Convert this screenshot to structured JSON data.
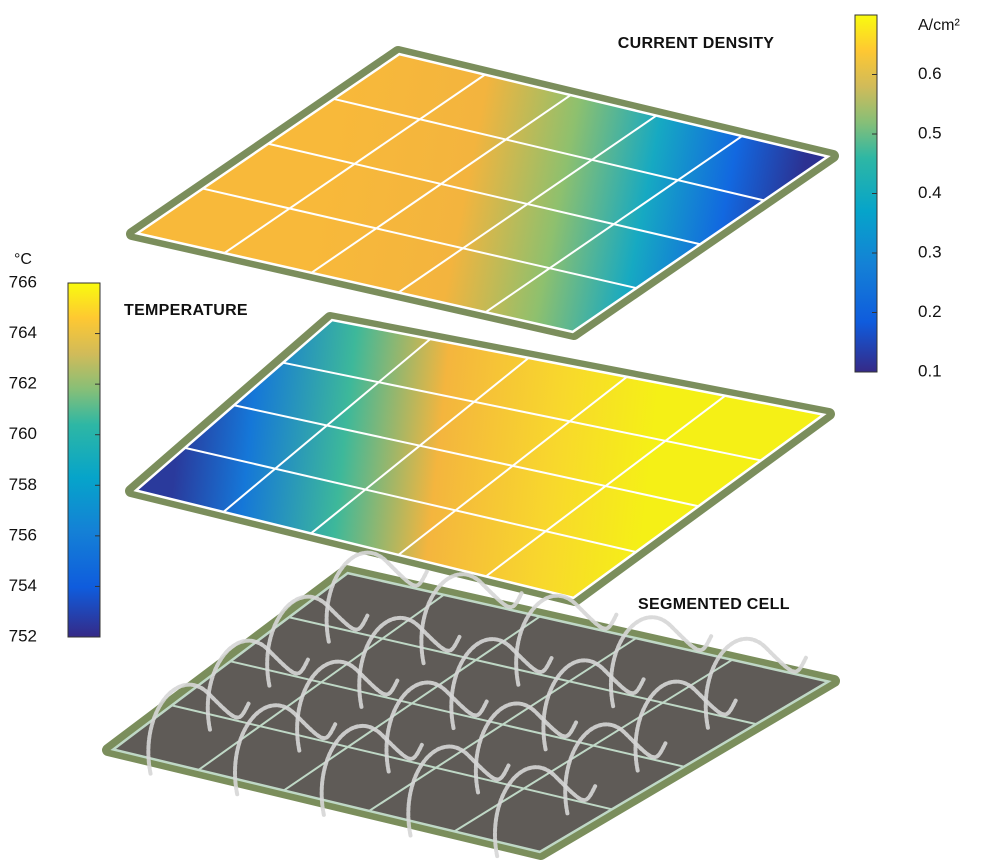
{
  "labels": {
    "current_density": "CURRENT DENSITY",
    "temperature": "TEMPERATURE",
    "segmented_cell": "SEGMENTED CELL"
  },
  "current_density_colorbar": {
    "unit": "A/cm²",
    "lim": [
      0.1,
      0.7
    ],
    "ticks": [
      0.1,
      0.2,
      0.3,
      0.4,
      0.5,
      0.6
    ]
  },
  "temperature_colorbar": {
    "unit": "°C",
    "lim": [
      752,
      766
    ],
    "ticks": [
      752,
      754,
      756,
      758,
      760,
      762,
      764,
      766
    ]
  }
}
